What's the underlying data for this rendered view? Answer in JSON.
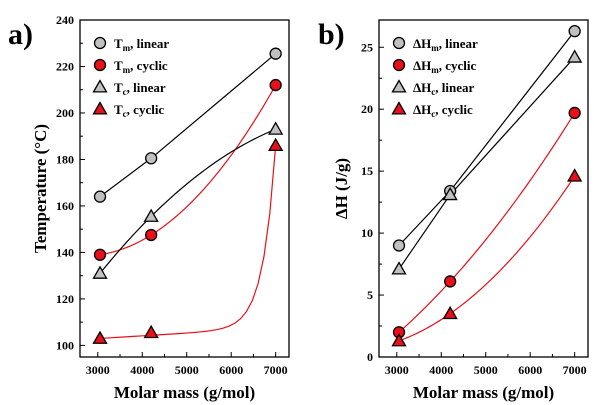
{
  "chart_data": [
    {
      "panel_label": "a)",
      "type": "line",
      "xlabel": "Molar mass (g/mol)",
      "ylabel": "Temperature (°C)",
      "xlim": [
        2600,
        7300
      ],
      "ylim": [
        95,
        240
      ],
      "xticks": [
        3000,
        4000,
        5000,
        6000,
        7000
      ],
      "yticks": [
        100,
        120,
        140,
        160,
        180,
        200,
        220,
        240
      ],
      "legend_position": "top-left",
      "series": [
        {
          "name_main": "T",
          "name_sub": "m",
          "name_rest": ", linear",
          "marker": "circle",
          "fill": "#c0c0c0",
          "line_color": "#000000",
          "smooth": false,
          "x": [
            3050,
            4200,
            7000
          ],
          "y": [
            164,
            180.5,
            225.5
          ]
        },
        {
          "name_main": "T",
          "name_sub": "m",
          "name_rest": ", cyclic",
          "marker": "circle",
          "fill": "#e8101a",
          "line_color": "#e8101a",
          "smooth": true,
          "x": [
            3050,
            4200,
            7000
          ],
          "y": [
            139,
            147.5,
            212
          ]
        },
        {
          "name_main": "T",
          "name_sub": "c",
          "name_rest": ", linear",
          "marker": "triangle",
          "fill": "#c0c0c0",
          "line_color": "#000000",
          "smooth": true,
          "x": [
            3050,
            4200,
            7000
          ],
          "y": [
            131,
            155.5,
            193
          ]
        },
        {
          "name_main": "T",
          "name_sub": "c",
          "name_rest": ", cyclic",
          "marker": "triangle",
          "fill": "#e8101a",
          "line_color": "#e8101a",
          "smooth": "exp",
          "x": [
            3050,
            4200,
            7000
          ],
          "y": [
            103,
            105.5,
            186
          ]
        }
      ]
    },
    {
      "panel_label": "b)",
      "type": "line",
      "xlabel": "Molar mass (g/mol)",
      "ylabel": "ΔH (J/g)",
      "xlim": [
        2600,
        7300
      ],
      "ylim": [
        0,
        27.2
      ],
      "xticks": [
        3000,
        4000,
        5000,
        6000,
        7000
      ],
      "yticks": [
        0,
        5,
        10,
        15,
        20,
        25
      ],
      "legend_position": "top-left",
      "series": [
        {
          "name_main": "ΔH",
          "name_sub": "m",
          "name_rest": ", linear",
          "marker": "circle",
          "fill": "#c0c0c0",
          "line_color": "#000000",
          "smooth": false,
          "x": [
            3050,
            4200,
            7000
          ],
          "y": [
            9.0,
            13.4,
            26.3
          ]
        },
        {
          "name_main": "ΔH",
          "name_sub": "m",
          "name_rest": ", cyclic",
          "marker": "circle",
          "fill": "#e8101a",
          "line_color": "#e8101a",
          "smooth": true,
          "x": [
            3050,
            4200,
            7000
          ],
          "y": [
            2.0,
            6.1,
            19.7
          ]
        },
        {
          "name_main": "ΔH",
          "name_sub": "c",
          "name_rest": ", linear",
          "marker": "triangle",
          "fill": "#c0c0c0",
          "line_color": "#000000",
          "smooth": false,
          "x": [
            3050,
            4200,
            7000
          ],
          "y": [
            7.1,
            13.1,
            24.2
          ]
        },
        {
          "name_main": "ΔH",
          "name_sub": "c",
          "name_rest": ", cyclic",
          "marker": "triangle",
          "fill": "#e8101a",
          "line_color": "#e8101a",
          "smooth": true,
          "x": [
            3050,
            4200,
            7000
          ],
          "y": [
            1.3,
            3.5,
            14.6
          ]
        }
      ]
    }
  ]
}
